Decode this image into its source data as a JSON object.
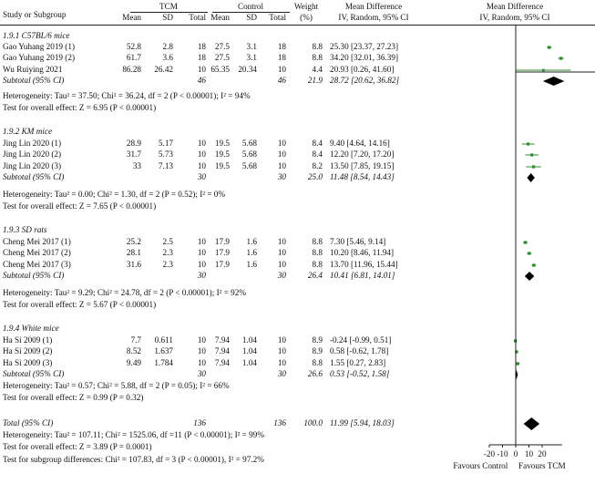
{
  "headers": {
    "study": "Study or Subgroup",
    "exp": "TCM",
    "ctrl": "Control",
    "mean": "Mean",
    "sd": "SD",
    "total": "Total",
    "weight": "Weight",
    "weight_unit": "(%)",
    "md": "Mean Difference",
    "md_sub": "IV, Random, 95% CI",
    "md_plot": "Mean Difference",
    "md_plot_sub": "IV, Random, 95% CI"
  },
  "subgroups": [
    {
      "title": "1.9.1 C57BL/6 mice",
      "studies": [
        {
          "name": "Gao Yuhang 2019 (1)",
          "m1": "52.8",
          "sd1": "2.8",
          "n1": "18",
          "m2": "27.5",
          "sd2": "3.1",
          "n2": "18",
          "w": "8.8",
          "ci": "25.30 [23.37, 27.23]"
        },
        {
          "name": "Gao Yuhang 2019 (2)",
          "m1": "61.7",
          "sd1": "3.6",
          "n1": "18",
          "m2": "27.5",
          "sd2": "3.1",
          "n2": "18",
          "w": "8.8",
          "ci": "34.20 [32.01, 36.39]"
        },
        {
          "name": "Wu Ruiying 2021",
          "m1": "86.28",
          "sd1": "26.42",
          "n1": "10",
          "m2": "65.35",
          "sd2": "20.34",
          "n2": "10",
          "w": "4.4",
          "ci": "20.93 [0.26, 41.60]"
        }
      ],
      "subtotal": {
        "label": "Subtotal (95% CI)",
        "n1": "46",
        "n2": "46",
        "w": "21.9",
        "ci": "28.72 [20.62, 36.82]"
      },
      "heterogeneity": "Heterogeneity: Tau² = 37.50; Chi² = 36.24, df = 2 (P < 0.00001); I² = 94%",
      "overall": "Test for overall effect: Z = 6.95 (P < 0.00001)"
    },
    {
      "title": "1.9.2 KM mice",
      "studies": [
        {
          "name": "Jing Lin 2020 (1)",
          "m1": "28.9",
          "sd1": "5.17",
          "n1": "10",
          "m2": "19.5",
          "sd2": "5.68",
          "n2": "10",
          "w": "8.4",
          "ci": "9.40 [4.64, 14.16]"
        },
        {
          "name": "Jing Lin 2020 (2)",
          "m1": "31.7",
          "sd1": "5.73",
          "n1": "10",
          "m2": "19.5",
          "sd2": "5.68",
          "n2": "10",
          "w": "8.4",
          "ci": "12.20 [7.20, 17.20]"
        },
        {
          "name": "Jing Lin 2020 (3)",
          "m1": "33",
          "sd1": "7.13",
          "n1": "10",
          "m2": "19.5",
          "sd2": "5.68",
          "n2": "10",
          "w": "8.2",
          "ci": "13.50 [7.85, 19.15]"
        }
      ],
      "subtotal": {
        "label": "Subtotal (95% CI)",
        "n1": "30",
        "n2": "30",
        "w": "25.0",
        "ci": "11.48 [8.54, 14.43]"
      },
      "heterogeneity": "Heterogeneity: Tau² = 0.00; Chi² = 1.30, df = 2 (P = 0.52); I² = 0%",
      "overall": "Test for overall effect: Z = 7.65 (P < 0.00001)"
    },
    {
      "title": "1.9.3 SD rats",
      "studies": [
        {
          "name": "Cheng Mei 2017 (1)",
          "m1": "25.2",
          "sd1": "2.5",
          "n1": "10",
          "m2": "17.9",
          "sd2": "1.6",
          "n2": "10",
          "w": "8.8",
          "ci": "7.30 [5.46, 9.14]"
        },
        {
          "name": "Cheng Mei 2017 (2)",
          "m1": "28.1",
          "sd1": "2.3",
          "n1": "10",
          "m2": "17.9",
          "sd2": "1.6",
          "n2": "10",
          "w": "8.8",
          "ci": "10.20 [8.46, 11.94]"
        },
        {
          "name": "Cheng Mei 2017 (3)",
          "m1": "31.6",
          "sd1": "2.3",
          "n1": "10",
          "m2": "17.9",
          "sd2": "1.6",
          "n2": "10",
          "w": "8.8",
          "ci": "13.70 [11.96, 15.44]"
        }
      ],
      "subtotal": {
        "label": "Subtotal (95% CI)",
        "n1": "30",
        "n2": "30",
        "w": "26.4",
        "ci": "10.41 [6.81, 14.01]"
      },
      "heterogeneity": "Heterogeneity: Tau² = 9.29; Chi² = 24.78, df = 2 (P < 0.00001); I² = 92%",
      "overall": "Test for overall effect: Z = 5.67 (P < 0.00001)"
    },
    {
      "title": "1.9.4 White mice",
      "studies": [
        {
          "name": "Ha Si 2009 (1)",
          "m1": "7.7",
          "sd1": "0.611",
          "n1": "10",
          "m2": "7.94",
          "sd2": "1.04",
          "n2": "10",
          "w": "8.9",
          "ci": "-0.24 [-0.99, 0.51]"
        },
        {
          "name": "Ha Si 2009 (2)",
          "m1": "8.52",
          "sd1": "1.637",
          "n1": "10",
          "m2": "7.94",
          "sd2": "1.04",
          "n2": "10",
          "w": "8.9",
          "ci": "0.58 [-0.62, 1.78]"
        },
        {
          "name": "Ha Si 2009 (3)",
          "m1": "9.49",
          "sd1": "1.784",
          "n1": "10",
          "m2": "7.94",
          "sd2": "1.04",
          "n2": "10",
          "w": "8.8",
          "ci": "1.55 [0.27, 2.83]"
        }
      ],
      "subtotal": {
        "label": "Subtotal (95% CI)",
        "n1": "30",
        "n2": "30",
        "w": "26.6",
        "ci": "0.53 [-0.52, 1.58]"
      },
      "heterogeneity": "Heterogeneity: Tau² = 0.57; Chi² = 5.88, df = 2 (P = 0.05); I² = 66%",
      "overall": "Test for overall effect: Z = 0.99 (P = 0.32)"
    }
  ],
  "total": {
    "label": "Total (95% CI)",
    "n1": "136",
    "n2": "136",
    "w": "100.0",
    "ci": "11.99 [5.94, 18.03]",
    "heterogeneity": "Heterogeneity: Tau² = 107.11; Chi² = 1525.06, df =11 (P < 0.00001); I² = 99%",
    "overall": "Test for overall effect: Z = 3.89 (P = 0.0001)",
    "subgroup_diff": "Test for subgroup differences: Chi² = 107.83, df = 3 (P < 0.00001), I² = 97.2%"
  },
  "axis": {
    "ticks": [
      "-20",
      "-10",
      "0",
      "10",
      "20"
    ],
    "favours_left": "Favours Control",
    "favours_right": "Favours TCM"
  },
  "colors": {
    "point": "#2e8b2e",
    "diamond": "#000000",
    "line": "#222222"
  },
  "chart_data": {
    "type": "forest",
    "x_range": [
      -20,
      35
    ],
    "null_value": 0,
    "ticks": [
      -20,
      -10,
      0,
      10,
      20
    ],
    "studies": [
      {
        "md": 25.3,
        "lo": 23.37,
        "hi": 27.23,
        "weight": 8.8
      },
      {
        "md": 34.2,
        "lo": 32.01,
        "hi": 36.39,
        "weight": 8.8
      },
      {
        "md": 20.93,
        "lo": 0.26,
        "hi": 41.6,
        "weight": 4.4
      },
      {
        "md": 9.4,
        "lo": 4.64,
        "hi": 14.16,
        "weight": 8.4
      },
      {
        "md": 12.2,
        "lo": 7.2,
        "hi": 17.2,
        "weight": 8.4
      },
      {
        "md": 13.5,
        "lo": 7.85,
        "hi": 19.15,
        "weight": 8.2
      },
      {
        "md": 7.3,
        "lo": 5.46,
        "hi": 9.14,
        "weight": 8.8
      },
      {
        "md": 10.2,
        "lo": 8.46,
        "hi": 11.94,
        "weight": 8.8
      },
      {
        "md": 13.7,
        "lo": 11.96,
        "hi": 15.44,
        "weight": 8.8
      },
      {
        "md": -0.24,
        "lo": -0.99,
        "hi": 0.51,
        "weight": 8.9
      },
      {
        "md": 0.58,
        "lo": -0.62,
        "hi": 1.78,
        "weight": 8.9
      },
      {
        "md": 1.55,
        "lo": 0.27,
        "hi": 2.83,
        "weight": 8.8
      }
    ],
    "subtotals": [
      {
        "md": 28.72,
        "lo": 20.62,
        "hi": 36.82
      },
      {
        "md": 11.48,
        "lo": 8.54,
        "hi": 14.43
      },
      {
        "md": 10.41,
        "lo": 6.81,
        "hi": 14.01
      },
      {
        "md": 0.53,
        "lo": -0.52,
        "hi": 1.58
      }
    ],
    "total": {
      "md": 11.99,
      "lo": 5.94,
      "hi": 18.03
    }
  }
}
